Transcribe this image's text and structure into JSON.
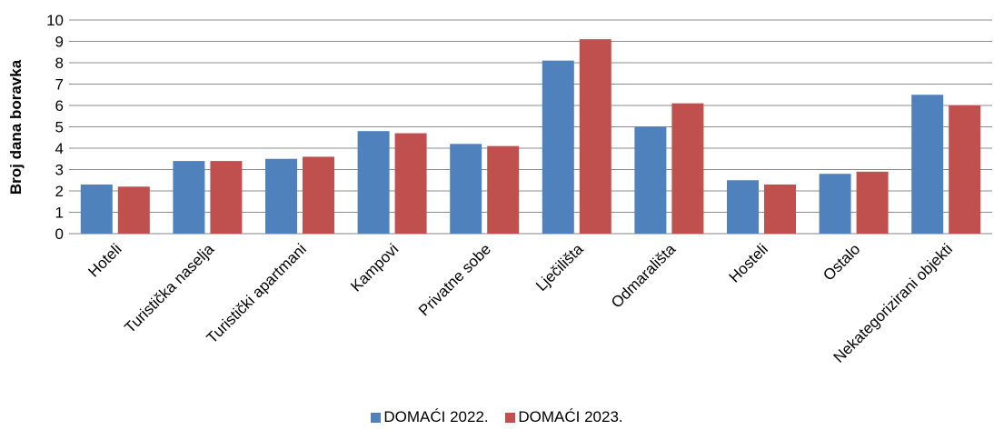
{
  "chart_data": {
    "type": "bar",
    "ylabel": "Broj dana boravka",
    "xlabel": "",
    "ylim": [
      0,
      10
    ],
    "yticks": [
      "0",
      "1",
      "2",
      "3",
      "4",
      "5",
      "6",
      "7",
      "8",
      "9",
      "10"
    ],
    "grid": true,
    "legend_position": "bottom",
    "categories": [
      "Hoteli",
      "Turistička naselja",
      "Turistički apartmani",
      "Kampovi",
      "Privatne sobe",
      "Lječilišta",
      "Odmarališta",
      "Hosteli",
      "Ostalo",
      "Nekategorizirani objekti"
    ],
    "series": [
      {
        "name": "DOMAĆI 2022.",
        "color": "#4f81bd",
        "values": [
          2.3,
          3.4,
          3.5,
          4.8,
          4.2,
          8.1,
          5.0,
          2.5,
          2.8,
          6.5
        ]
      },
      {
        "name": "DOMAĆI 2023.",
        "color": "#c0504d",
        "values": [
          2.2,
          3.4,
          3.6,
          4.7,
          4.1,
          9.1,
          6.1,
          2.3,
          2.9,
          6.0
        ]
      }
    ]
  }
}
